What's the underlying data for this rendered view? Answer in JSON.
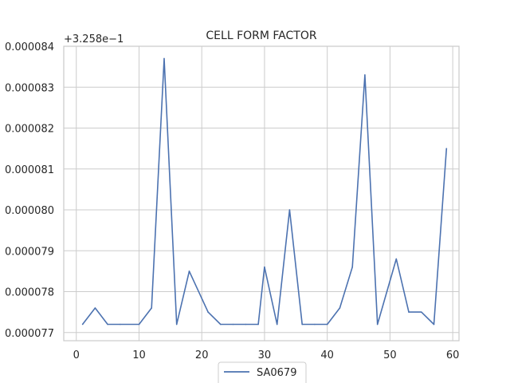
{
  "chart_data": {
    "type": "line",
    "title": "CELL FORM FACTOR",
    "xlabel": "",
    "ylabel": "",
    "y_offset_label": "+3.258e−1",
    "x_ticks": [
      "0",
      "10",
      "20",
      "30",
      "40",
      "50",
      "60"
    ],
    "y_ticks": [
      "0.000077",
      "0.000078",
      "0.000079",
      "0.000080",
      "0.000081",
      "0.000082",
      "0.000083",
      "0.000084"
    ],
    "xlim": [
      -2,
      61
    ],
    "ylim": [
      7.68e-05,
      8.4e-05
    ],
    "grid": true,
    "legend_position": "bottom-center",
    "series": [
      {
        "name": "SA0679",
        "color": "#4c72b0",
        "x": [
          1,
          3,
          5,
          7,
          10,
          12,
          14,
          16,
          18,
          21,
          23,
          25,
          27,
          29,
          30,
          32,
          34,
          36,
          38,
          40,
          42,
          44,
          46,
          48,
          51,
          53,
          55,
          57,
          59
        ],
        "y": [
          7.72e-05,
          7.76e-05,
          7.72e-05,
          7.72e-05,
          7.72e-05,
          7.76e-05,
          8.37e-05,
          7.72e-05,
          7.85e-05,
          7.75e-05,
          7.72e-05,
          7.72e-05,
          7.72e-05,
          7.72e-05,
          7.86e-05,
          7.72e-05,
          8e-05,
          7.72e-05,
          7.72e-05,
          7.72e-05,
          7.76e-05,
          7.86e-05,
          8.33e-05,
          7.72e-05,
          7.88e-05,
          7.75e-05,
          7.75e-05,
          7.72e-05,
          8.15e-05
        ]
      }
    ]
  }
}
